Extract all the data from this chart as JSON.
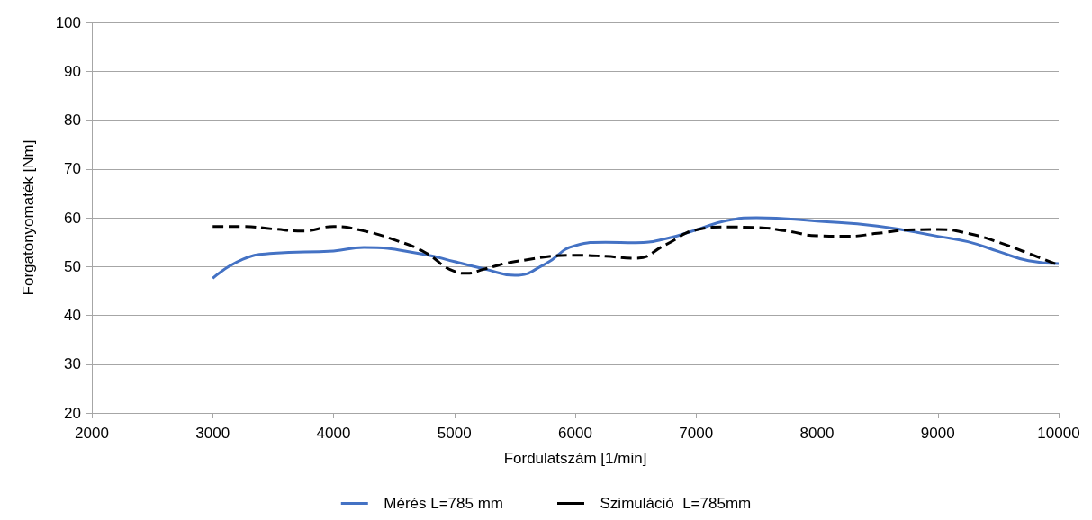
{
  "chart_data": {
    "type": "line",
    "xlabel": "Fordulatszám [1/min]",
    "ylabel": "Forgatónyomaték [Nm]",
    "xlim": [
      2000,
      10000
    ],
    "xticks": [
      2000,
      3000,
      4000,
      5000,
      6000,
      7000,
      8000,
      9000,
      10000
    ],
    "ylim": [
      20,
      100
    ],
    "yticks": [
      20,
      30,
      40,
      50,
      60,
      70,
      80,
      90,
      100
    ],
    "grid": "y",
    "legend": "bottom",
    "marker": "none",
    "series": [
      {
        "name": "Mérés L=785 mm",
        "color": "#4472c4",
        "line_style": "solid",
        "x": [
          3000,
          3250,
          3500,
          4000,
          4250,
          4750,
          5000,
          5250,
          5500,
          5750,
          6000,
          6250,
          6500,
          6750,
          7000,
          7250,
          7500,
          8000,
          8500,
          9000,
          9250,
          9500,
          9750,
          10000
        ],
        "values": [
          47.6,
          51.5,
          52.7,
          53.2,
          53.9,
          52.5,
          51,
          49.5,
          48.2,
          50.5,
          54.3,
          55,
          54.9,
          55.7,
          57.5,
          59.4,
          60,
          59.3,
          58.3,
          56.2,
          55.1,
          53.1,
          51.2,
          50.6
        ]
      },
      {
        "name": "Szimuláció  L=785mm",
        "color": "#000000",
        "line_style": "dashed",
        "x": [
          3000,
          3250,
          3500,
          3750,
          4000,
          4250,
          4500,
          4750,
          5000,
          5100,
          5250,
          5500,
          6000,
          6250,
          6500,
          6750,
          7000,
          7250,
          7500,
          7750,
          8000,
          8250,
          8500,
          8750,
          9000,
          9250,
          9500,
          9750,
          10000
        ],
        "values": [
          58.2,
          58.2,
          57.7,
          57.3,
          58.2,
          57.3,
          55.5,
          53,
          49,
          48.6,
          49.5,
          51,
          52.3,
          52.1,
          51.7,
          54.5,
          57.5,
          58.1,
          58,
          57.3,
          56.3,
          56.2,
          56.8,
          57.5,
          57.6,
          56.8,
          55,
          52.7,
          50.3
        ]
      }
    ]
  }
}
